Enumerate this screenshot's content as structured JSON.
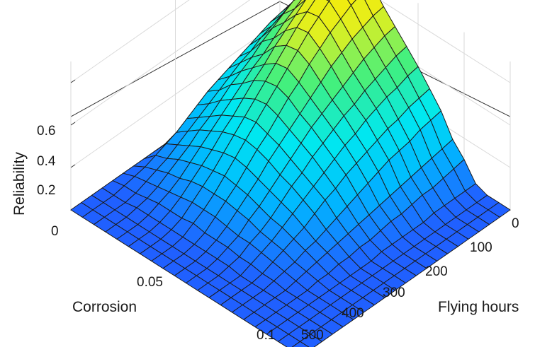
{
  "chart_data": {
    "type": "surface",
    "title": "",
    "xlabel": "Corrosion",
    "ylabel": "Flying hours",
    "zlabel": "Reliability",
    "x_ticks": [
      "0",
      "0.05",
      "0.1"
    ],
    "y_ticks": [
      "0",
      "100",
      "200",
      "300",
      "400",
      "500"
    ],
    "z_ticks": [
      "0.2",
      "0.4",
      "0.6"
    ],
    "xlim": [
      0,
      0.1
    ],
    "ylim": [
      0,
      500
    ],
    "zlim": [
      0,
      0.7
    ],
    "grid": true,
    "colormap": [
      "#2060ff",
      "#00b8ff",
      "#00e8f0",
      "#40f080",
      "#e0f020",
      "#ffe800"
    ],
    "surface": {
      "corrosion": [
        0,
        0.005,
        0.01,
        0.015,
        0.02,
        0.025,
        0.03,
        0.035,
        0.04,
        0.045,
        0.05,
        0.055,
        0.06,
        0.065,
        0.07,
        0.075,
        0.08,
        0.085,
        0.09,
        0.095,
        0.1
      ],
      "flying_hours": [
        0,
        25,
        50,
        75,
        100,
        125,
        150,
        175,
        200,
        225,
        250,
        275,
        300,
        325,
        350,
        375,
        400,
        425,
        450,
        475,
        500
      ],
      "reliability": [
        [
          0.1,
          0.32,
          0.4,
          0.5,
          0.56,
          0.64,
          0.69,
          0.7,
          0.65,
          0.58,
          0.52,
          0.46,
          0.4,
          0.33,
          0.26,
          0.16,
          0.1,
          0.02,
          0.0,
          0.0,
          0.0
        ],
        [
          0.09,
          0.31,
          0.39,
          0.49,
          0.55,
          0.63,
          0.68,
          0.69,
          0.64,
          0.57,
          0.51,
          0.45,
          0.39,
          0.32,
          0.25,
          0.15,
          0.09,
          0.02,
          0.0,
          0.0,
          0.0
        ],
        [
          0.08,
          0.3,
          0.37,
          0.47,
          0.53,
          0.61,
          0.66,
          0.67,
          0.62,
          0.55,
          0.49,
          0.43,
          0.37,
          0.31,
          0.24,
          0.14,
          0.08,
          0.02,
          0.0,
          0.0,
          0.0
        ],
        [
          0.07,
          0.28,
          0.35,
          0.44,
          0.5,
          0.58,
          0.63,
          0.64,
          0.59,
          0.53,
          0.47,
          0.41,
          0.36,
          0.29,
          0.22,
          0.13,
          0.07,
          0.02,
          0.0,
          0.0,
          0.0
        ],
        [
          0.06,
          0.26,
          0.33,
          0.41,
          0.47,
          0.54,
          0.59,
          0.6,
          0.56,
          0.5,
          0.44,
          0.39,
          0.34,
          0.28,
          0.21,
          0.12,
          0.07,
          0.02,
          0.0,
          0.0,
          0.0
        ],
        [
          0.05,
          0.24,
          0.3,
          0.38,
          0.43,
          0.5,
          0.55,
          0.56,
          0.52,
          0.47,
          0.41,
          0.36,
          0.32,
          0.26,
          0.2,
          0.11,
          0.06,
          0.01,
          0.0,
          0.0,
          0.0
        ],
        [
          0.04,
          0.22,
          0.28,
          0.34,
          0.39,
          0.46,
          0.5,
          0.51,
          0.48,
          0.43,
          0.38,
          0.34,
          0.29,
          0.24,
          0.18,
          0.1,
          0.05,
          0.01,
          0.0,
          0.0,
          0.0
        ],
        [
          0.03,
          0.2,
          0.25,
          0.31,
          0.36,
          0.41,
          0.45,
          0.46,
          0.43,
          0.39,
          0.35,
          0.31,
          0.27,
          0.22,
          0.16,
          0.09,
          0.05,
          0.01,
          0.0,
          0.0,
          0.0
        ],
        [
          0.02,
          0.18,
          0.22,
          0.28,
          0.32,
          0.37,
          0.4,
          0.41,
          0.39,
          0.35,
          0.32,
          0.28,
          0.24,
          0.2,
          0.14,
          0.08,
          0.04,
          0.01,
          0.0,
          0.0,
          0.0
        ],
        [
          0.01,
          0.15,
          0.19,
          0.24,
          0.28,
          0.32,
          0.35,
          0.36,
          0.34,
          0.31,
          0.28,
          0.25,
          0.21,
          0.17,
          0.12,
          0.07,
          0.03,
          0.01,
          0.0,
          0.0,
          0.0
        ],
        [
          0.0,
          0.12,
          0.16,
          0.2,
          0.24,
          0.27,
          0.3,
          0.31,
          0.29,
          0.27,
          0.24,
          0.21,
          0.18,
          0.15,
          0.1,
          0.06,
          0.03,
          0.0,
          0.0,
          0.0,
          0.0
        ],
        [
          0.0,
          0.09,
          0.13,
          0.17,
          0.2,
          0.23,
          0.25,
          0.26,
          0.25,
          0.23,
          0.2,
          0.18,
          0.15,
          0.12,
          0.08,
          0.05,
          0.02,
          0.0,
          0.0,
          0.0,
          0.0
        ],
        [
          0.0,
          0.07,
          0.1,
          0.13,
          0.16,
          0.18,
          0.2,
          0.21,
          0.2,
          0.18,
          0.16,
          0.14,
          0.12,
          0.09,
          0.06,
          0.04,
          0.02,
          0.0,
          0.0,
          0.0,
          0.0
        ],
        [
          0.0,
          0.05,
          0.07,
          0.1,
          0.12,
          0.14,
          0.15,
          0.16,
          0.15,
          0.14,
          0.12,
          0.1,
          0.09,
          0.07,
          0.05,
          0.03,
          0.01,
          0.0,
          0.0,
          0.0,
          0.0
        ],
        [
          0.0,
          0.03,
          0.05,
          0.07,
          0.08,
          0.1,
          0.11,
          0.11,
          0.11,
          0.1,
          0.09,
          0.07,
          0.06,
          0.05,
          0.03,
          0.02,
          0.01,
          0.0,
          0.0,
          0.0,
          0.0
        ],
        [
          0.0,
          0.02,
          0.03,
          0.04,
          0.05,
          0.06,
          0.07,
          0.07,
          0.07,
          0.06,
          0.05,
          0.05,
          0.04,
          0.03,
          0.02,
          0.01,
          0.0,
          0.0,
          0.0,
          0.0,
          0.0
        ],
        [
          0.0,
          0.01,
          0.01,
          0.02,
          0.03,
          0.03,
          0.03,
          0.04,
          0.03,
          0.03,
          0.03,
          0.02,
          0.02,
          0.01,
          0.01,
          0.0,
          0.0,
          0.0,
          0.0,
          0.0,
          0.0
        ],
        [
          0.0,
          0.0,
          0.0,
          0.01,
          0.01,
          0.01,
          0.01,
          0.01,
          0.01,
          0.01,
          0.01,
          0.01,
          0.0,
          0.0,
          0.0,
          0.0,
          0.0,
          0.0,
          0.0,
          0.0,
          0.0
        ],
        [
          0.0,
          0.0,
          0.0,
          0.0,
          0.0,
          0.0,
          0.0,
          0.0,
          0.0,
          0.0,
          0.0,
          0.0,
          0.0,
          0.0,
          0.0,
          0.0,
          0.0,
          0.0,
          0.0,
          0.0,
          0.0
        ],
        [
          0.0,
          0.0,
          0.0,
          0.0,
          0.0,
          0.0,
          0.0,
          0.0,
          0.0,
          0.0,
          0.0,
          0.0,
          0.0,
          0.0,
          0.0,
          0.0,
          0.0,
          0.0,
          0.0,
          0.0,
          0.0
        ],
        [
          0.0,
          0.0,
          0.0,
          0.0,
          0.0,
          0.0,
          0.0,
          0.0,
          0.0,
          0.0,
          0.0,
          0.0,
          0.0,
          0.0,
          0.0,
          0.0,
          0.0,
          0.0,
          0.0,
          0.0,
          0.0
        ]
      ]
    }
  }
}
